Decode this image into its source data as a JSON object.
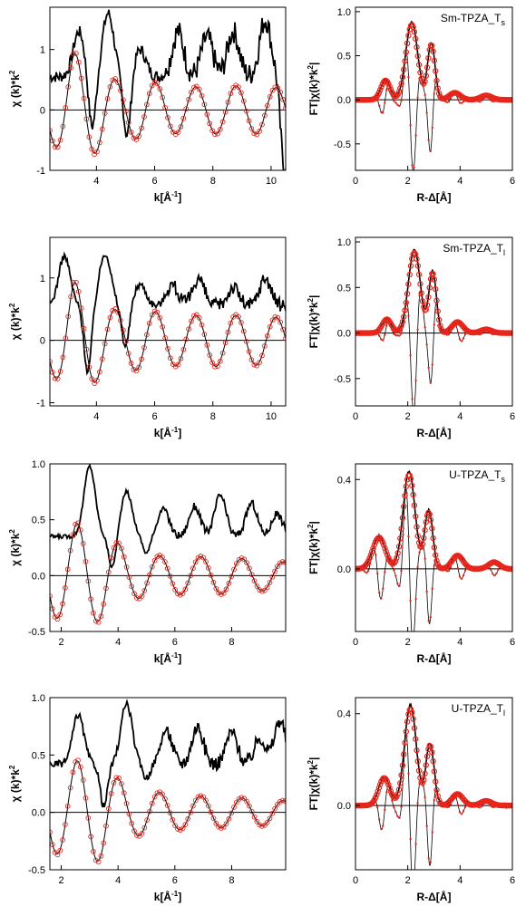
{
  "chart_data": [
    {
      "id": "k-sm-ts",
      "type": "line",
      "ylabel_main": "χ (k)*k",
      "ylabel_sup": "2",
      "xlabel_main": "k[Å",
      "xlabel_sup": "-1",
      "xlabel_end": "]",
      "xlim": [
        2.4,
        10.5
      ],
      "ylim": [
        -1.0,
        1.7
      ],
      "xticks": [
        "4",
        "6",
        "8",
        "10"
      ],
      "yticks": [
        "-1",
        "0",
        "1"
      ],
      "osc": {
        "amp": [
          0.5,
          0.95,
          0.7,
          0.45,
          0.5,
          0.4,
          0.38,
          0.4,
          0.4,
          0.4,
          0.35
        ],
        "phase0": 1.55,
        "period": 1.38,
        "start": 2.4,
        "end": 10.5
      },
      "mag": {
        "base": 0.55,
        "peaks": [
          [
            3.4,
            1.3
          ],
          [
            4.4,
            1.6
          ],
          [
            5.5,
            1.0
          ],
          [
            6.8,
            1.3
          ],
          [
            7.8,
            1.2
          ],
          [
            8.7,
            1.3
          ],
          [
            9.8,
            1.5
          ]
        ],
        "noise": 0.28,
        "min": -0.55,
        "dip": [
          [
            3.85,
            -0.35
          ],
          [
            5.05,
            -0.45
          ],
          [
            10.45,
            -0.95
          ]
        ]
      }
    },
    {
      "id": "r-sm-ts",
      "type": "line",
      "annotation": "Sm-TPZA_T",
      "annotation_sub": "s",
      "ylabel_main": "FT|χ(k)*k",
      "ylabel_sup": "2",
      "ylabel_end": "|",
      "xlabel": "R-Δ[Å]",
      "xlim": [
        0,
        6
      ],
      "ylim": [
        -0.8,
        1.05
      ],
      "xticks": [
        "0",
        "2",
        "4",
        "6"
      ],
      "yticks": [
        "-0.5",
        "0.0",
        "0.5",
        "1.0"
      ],
      "peaks": [
        [
          1.15,
          0.22,
          0.25
        ],
        [
          2.15,
          0.85,
          0.32
        ],
        [
          2.9,
          0.62,
          0.2
        ],
        [
          3.8,
          0.08,
          0.3
        ],
        [
          5.0,
          0.05,
          0.3
        ]
      ],
      "im_min": -0.78
    },
    {
      "id": "k-sm-tl",
      "type": "line",
      "ylabel_main": "χ (k)*k",
      "ylabel_sup": "2",
      "xlabel_main": "k[Å",
      "xlabel_sup": "-1",
      "xlabel_end": "]",
      "xlim": [
        2.4,
        10.5
      ],
      "ylim": [
        -1.05,
        1.65
      ],
      "xticks": [
        "4",
        "6",
        "8",
        "10"
      ],
      "yticks": [
        "-1",
        "0",
        "1"
      ],
      "osc": {
        "amp": [
          0.5,
          0.95,
          0.65,
          0.45,
          0.5,
          0.42,
          0.4,
          0.42,
          0.4,
          0.4,
          0.35
        ],
        "phase0": 1.55,
        "period": 1.38,
        "start": 2.4,
        "end": 10.5
      },
      "mag": {
        "base": 0.55,
        "peaks": [
          [
            2.9,
            1.35
          ],
          [
            4.3,
            1.4
          ],
          [
            5.5,
            0.9
          ],
          [
            6.6,
            0.9
          ],
          [
            7.5,
            1.0
          ],
          [
            8.7,
            0.85
          ],
          [
            9.8,
            1.0
          ]
        ],
        "noise": 0.16,
        "min": -0.55,
        "dip": [
          [
            3.7,
            -0.5
          ],
          [
            5.0,
            -0.1
          ]
        ]
      }
    },
    {
      "id": "r-sm-tl",
      "type": "line",
      "annotation": "Sm-TPZA_T",
      "annotation_sub": "l",
      "ylabel_main": "FT|χ(k)*k",
      "ylabel_sup": "2",
      "ylabel_end": "|",
      "xlabel": "R-Δ[Å]",
      "xlim": [
        0,
        6
      ],
      "ylim": [
        -0.8,
        1.05
      ],
      "xticks": [
        "0",
        "2",
        "4",
        "6"
      ],
      "yticks": [
        "-0.5",
        "0.0",
        "0.5",
        "1.0"
      ],
      "peaks": [
        [
          1.2,
          0.15,
          0.25
        ],
        [
          2.25,
          0.88,
          0.32
        ],
        [
          2.95,
          0.65,
          0.2
        ],
        [
          3.9,
          0.12,
          0.3
        ],
        [
          5.0,
          0.04,
          0.3
        ]
      ],
      "im_min": -0.8
    },
    {
      "id": "k-u-ts",
      "type": "line",
      "ylabel_main": "χ (k)*k",
      "ylabel_sup": "2",
      "xlabel_main": "k[Å",
      "xlabel_sup": "-1",
      "xlabel_end": "]",
      "xlim": [
        1.6,
        9.9
      ],
      "ylim": [
        -0.5,
        1.0
      ],
      "xticks": [
        "2",
        "4",
        "6",
        "8"
      ],
      "yticks": [
        "-0.5",
        "0.0",
        "0.5",
        "1.0"
      ],
      "osc": {
        "amp": [
          0.35,
          0.47,
          0.4,
          0.22,
          0.18,
          0.17,
          0.17,
          0.16,
          0.14,
          0.12
        ],
        "phase0": 2.2,
        "period": 1.45,
        "start": 1.6,
        "end": 9.9
      },
      "mag": {
        "base": 0.35,
        "peaks": [
          [
            3.0,
            0.98
          ],
          [
            4.3,
            0.75
          ],
          [
            5.6,
            0.6
          ],
          [
            6.7,
            0.62
          ],
          [
            7.6,
            0.72
          ],
          [
            8.7,
            0.65
          ],
          [
            9.6,
            0.55
          ]
        ],
        "noise": 0.05,
        "min": 0.0,
        "dip": [
          [
            3.8,
            0.06
          ],
          [
            5.0,
            0.2
          ],
          [
            7.1,
            0.35
          ]
        ]
      }
    },
    {
      "id": "r-u-ts",
      "type": "line",
      "annotation": "U-TPZA_T",
      "annotation_sub": "s",
      "ylabel_main": "FT|χ(k)*k",
      "ylabel_sup": "2",
      "ylabel_end": "|",
      "xlabel": "R-Δ[Å]",
      "xlim": [
        0,
        6
      ],
      "ylim": [
        -0.28,
        0.47
      ],
      "xticks": [
        "0",
        "2",
        "4",
        "6"
      ],
      "yticks": [
        "0.0",
        "0.4"
      ],
      "peaks": [
        [
          0.9,
          0.14,
          0.35
        ],
        [
          2.05,
          0.42,
          0.32
        ],
        [
          2.8,
          0.25,
          0.22
        ],
        [
          3.9,
          0.06,
          0.3
        ],
        [
          5.3,
          0.03,
          0.3
        ]
      ],
      "im_min": -0.25
    },
    {
      "id": "k-u-tl",
      "type": "line",
      "ylabel_main": "χ (k)*k",
      "ylabel_sup": "2",
      "xlabel_main": "k[Å",
      "xlabel_sup": "-1",
      "xlabel_end": "]",
      "xlim": [
        1.6,
        9.9
      ],
      "ylim": [
        -0.5,
        1.0
      ],
      "xticks": [
        "2",
        "4",
        "6",
        "8"
      ],
      "yticks": [
        "-0.5",
        "0.0",
        "0.5",
        "1.0"
      ],
      "osc": {
        "amp": [
          0.33,
          0.45,
          0.42,
          0.22,
          0.18,
          0.15,
          0.14,
          0.13,
          0.12,
          0.1
        ],
        "phase0": 2.2,
        "period": 1.45,
        "start": 1.6,
        "end": 9.9
      },
      "mag": {
        "base": 0.42,
        "peaks": [
          [
            2.6,
            0.85
          ],
          [
            4.3,
            0.95
          ],
          [
            5.7,
            0.72
          ],
          [
            6.8,
            0.75
          ],
          [
            8.0,
            0.7
          ],
          [
            9.0,
            0.65
          ],
          [
            9.7,
            0.8
          ]
        ],
        "noise": 0.09,
        "min": 0.0,
        "dip": [
          [
            3.5,
            0.05
          ],
          [
            5.0,
            0.3
          ]
        ]
      }
    },
    {
      "id": "r-u-tl",
      "type": "line",
      "annotation": "U-TPZA_T",
      "annotation_sub": "l",
      "ylabel_main": "FT|χ(k)*k",
      "ylabel_sup": "2",
      "ylabel_end": "|",
      "xlabel": "R-Δ[Å]",
      "xlim": [
        0,
        6
      ],
      "ylim": [
        -0.28,
        0.47
      ],
      "xticks": [
        "0",
        "2",
        "4",
        "6"
      ],
      "yticks": [
        "0.0",
        "0.4"
      ],
      "peaks": [
        [
          1.1,
          0.12,
          0.3
        ],
        [
          2.1,
          0.42,
          0.32
        ],
        [
          2.85,
          0.26,
          0.22
        ],
        [
          3.9,
          0.05,
          0.3
        ],
        [
          5.0,
          0.02,
          0.3
        ]
      ],
      "im_min": -0.25
    }
  ],
  "colors": {
    "data": "#000000",
    "fit": "#e8261c",
    "zero": "#000000"
  }
}
